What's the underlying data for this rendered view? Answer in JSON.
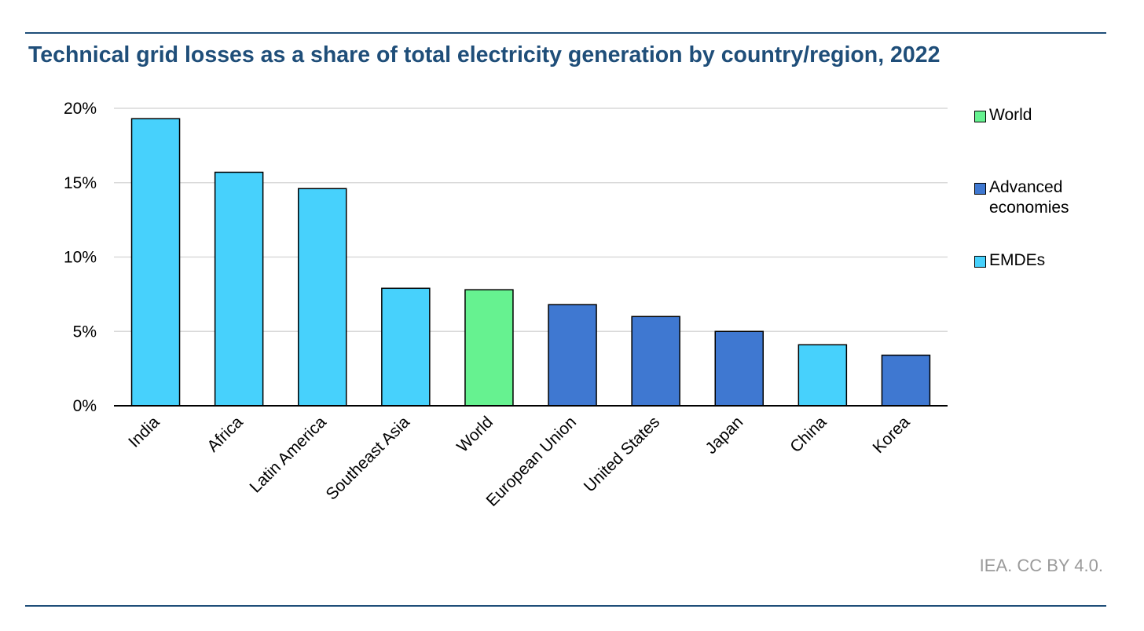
{
  "title": "Technical grid losses as a share of total electricity generation by country/region, 2022",
  "source": "IEA. CC BY 4.0.",
  "colors": {
    "world": "#66f290",
    "advanced": "#3f78d1",
    "emdes": "#47d1fc",
    "rule": "#1f4e79",
    "gridline": "#d9d9d9"
  },
  "legend": [
    {
      "label": "World",
      "color": "#66f290"
    },
    {
      "label": "Advanced economies",
      "color": "#3f78d1"
    },
    {
      "label": "EMDEs",
      "color": "#47d1fc"
    }
  ],
  "chart_data": {
    "type": "bar",
    "title": "Technical grid losses as a share of total electricity generation by country/region, 2022",
    "xlabel": "",
    "ylabel": "",
    "ylim": [
      0,
      20
    ],
    "yticks": [
      "0%",
      "5%",
      "10%",
      "15%",
      "20%"
    ],
    "grid": true,
    "legend_position": "right",
    "categories": [
      "India",
      "Africa",
      "Latin America",
      "Southeast Asia",
      "World",
      "European Union",
      "United States",
      "Japan",
      "China",
      "Korea"
    ],
    "values": [
      19.3,
      15.7,
      14.6,
      7.9,
      7.8,
      6.8,
      6.0,
      5.0,
      4.1,
      3.4
    ],
    "groups": [
      "EMDEs",
      "EMDEs",
      "EMDEs",
      "EMDEs",
      "World",
      "Advanced economies",
      "Advanced economies",
      "Advanced economies",
      "EMDEs",
      "Advanced economies"
    ]
  }
}
